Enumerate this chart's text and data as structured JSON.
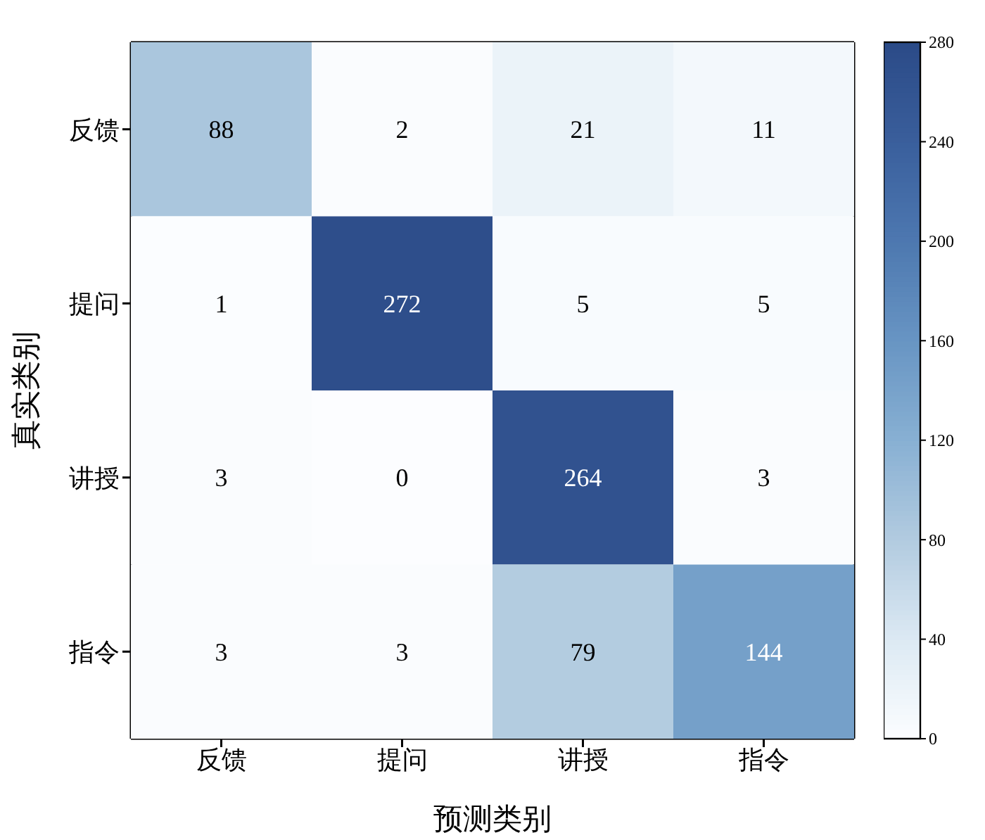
{
  "chart_data": {
    "type": "heatmap",
    "xlabel": "预测类别",
    "ylabel": "真实类别",
    "categories": [
      "反馈",
      "提问",
      "讲授",
      "指令"
    ],
    "y_categories": [
      "反馈",
      "提问",
      "讲授",
      "指令"
    ],
    "cells": [
      [
        88,
        2,
        21,
        11
      ],
      [
        1,
        272,
        5,
        5
      ],
      [
        3,
        0,
        264,
        3
      ],
      [
        3,
        3,
        79,
        144
      ]
    ],
    "clim": [
      0,
      280
    ],
    "cticks": [
      0,
      40,
      80,
      120,
      160,
      200,
      240,
      280
    ],
    "data_labels": true
  }
}
